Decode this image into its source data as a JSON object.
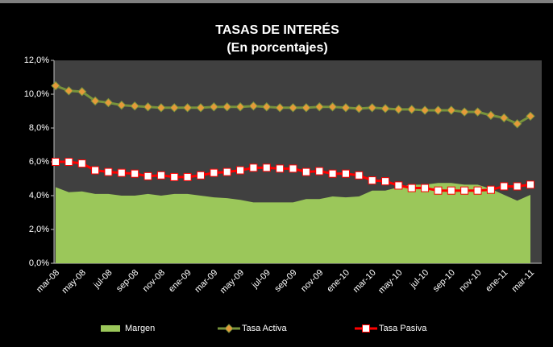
{
  "chart_data": {
    "type": "line",
    "title": "TASAS DE INTERÉS",
    "subtitle": "(En porcentajes)",
    "categories": [
      "mar-08",
      null,
      "may-08",
      null,
      "jul-08",
      null,
      "sep-08",
      null,
      "nov-08",
      null,
      "ene-09",
      null,
      "mar-09",
      null,
      "may-09",
      null,
      "jul-09",
      null,
      "sep-09",
      null,
      "nov-09",
      null,
      "ene-10",
      null,
      "mar-10",
      null,
      "may-10",
      null,
      "jul-10",
      null,
      "sep-10",
      null,
      "nov-10",
      null,
      "ene-11",
      null,
      "mar-11"
    ],
    "series": [
      {
        "name": "Margen",
        "type": "area",
        "color": "#9bc75a",
        "values": [
          4.5,
          4.2,
          4.25,
          4.1,
          4.1,
          4.0,
          4.0,
          4.1,
          4.0,
          4.1,
          4.1,
          4.0,
          3.9,
          3.85,
          3.75,
          3.6,
          3.6,
          3.6,
          3.6,
          3.8,
          3.8,
          3.95,
          3.9,
          3.95,
          4.3,
          4.3,
          4.5,
          4.65,
          4.65,
          4.75,
          4.75,
          4.65,
          4.65,
          4.4,
          4.05,
          3.7,
          4.05
        ]
      },
      {
        "name": "Tasa Activa",
        "type": "line",
        "color": "#77933c",
        "marker": "diamond",
        "marker_color": "#e59a3a",
        "values": [
          10.5,
          10.2,
          10.15,
          9.6,
          9.5,
          9.35,
          9.3,
          9.25,
          9.2,
          9.2,
          9.2,
          9.2,
          9.25,
          9.25,
          9.25,
          9.3,
          9.25,
          9.2,
          9.2,
          9.2,
          9.25,
          9.25,
          9.2,
          9.15,
          9.2,
          9.15,
          9.1,
          9.1,
          9.05,
          9.05,
          9.05,
          8.95,
          8.95,
          8.75,
          8.6,
          8.25,
          8.7
        ]
      },
      {
        "name": "Tasa Pasiva",
        "type": "line",
        "color": "#ff0000",
        "marker": "square",
        "marker_color": "#ffffff",
        "values": [
          6.0,
          6.0,
          5.9,
          5.5,
          5.4,
          5.35,
          5.3,
          5.15,
          5.2,
          5.1,
          5.1,
          5.2,
          5.35,
          5.4,
          5.5,
          5.65,
          5.65,
          5.6,
          5.6,
          5.4,
          5.45,
          5.3,
          5.3,
          5.2,
          4.9,
          4.85,
          4.6,
          4.45,
          4.45,
          4.3,
          4.3,
          4.3,
          4.3,
          4.35,
          4.55,
          4.55,
          4.65
        ]
      }
    ],
    "ylim": [
      0,
      12
    ],
    "yticks": [
      {
        "value": 0,
        "label": "0,0%"
      },
      {
        "value": 2,
        "label": "2,0%"
      },
      {
        "value": 4,
        "label": "4,0%"
      },
      {
        "value": 6,
        "label": "6,0%"
      },
      {
        "value": 8,
        "label": "8,0%"
      },
      {
        "value": 10,
        "label": "10,0%"
      },
      {
        "value": 12,
        "label": "12,0%"
      }
    ],
    "legend": "bottom"
  }
}
